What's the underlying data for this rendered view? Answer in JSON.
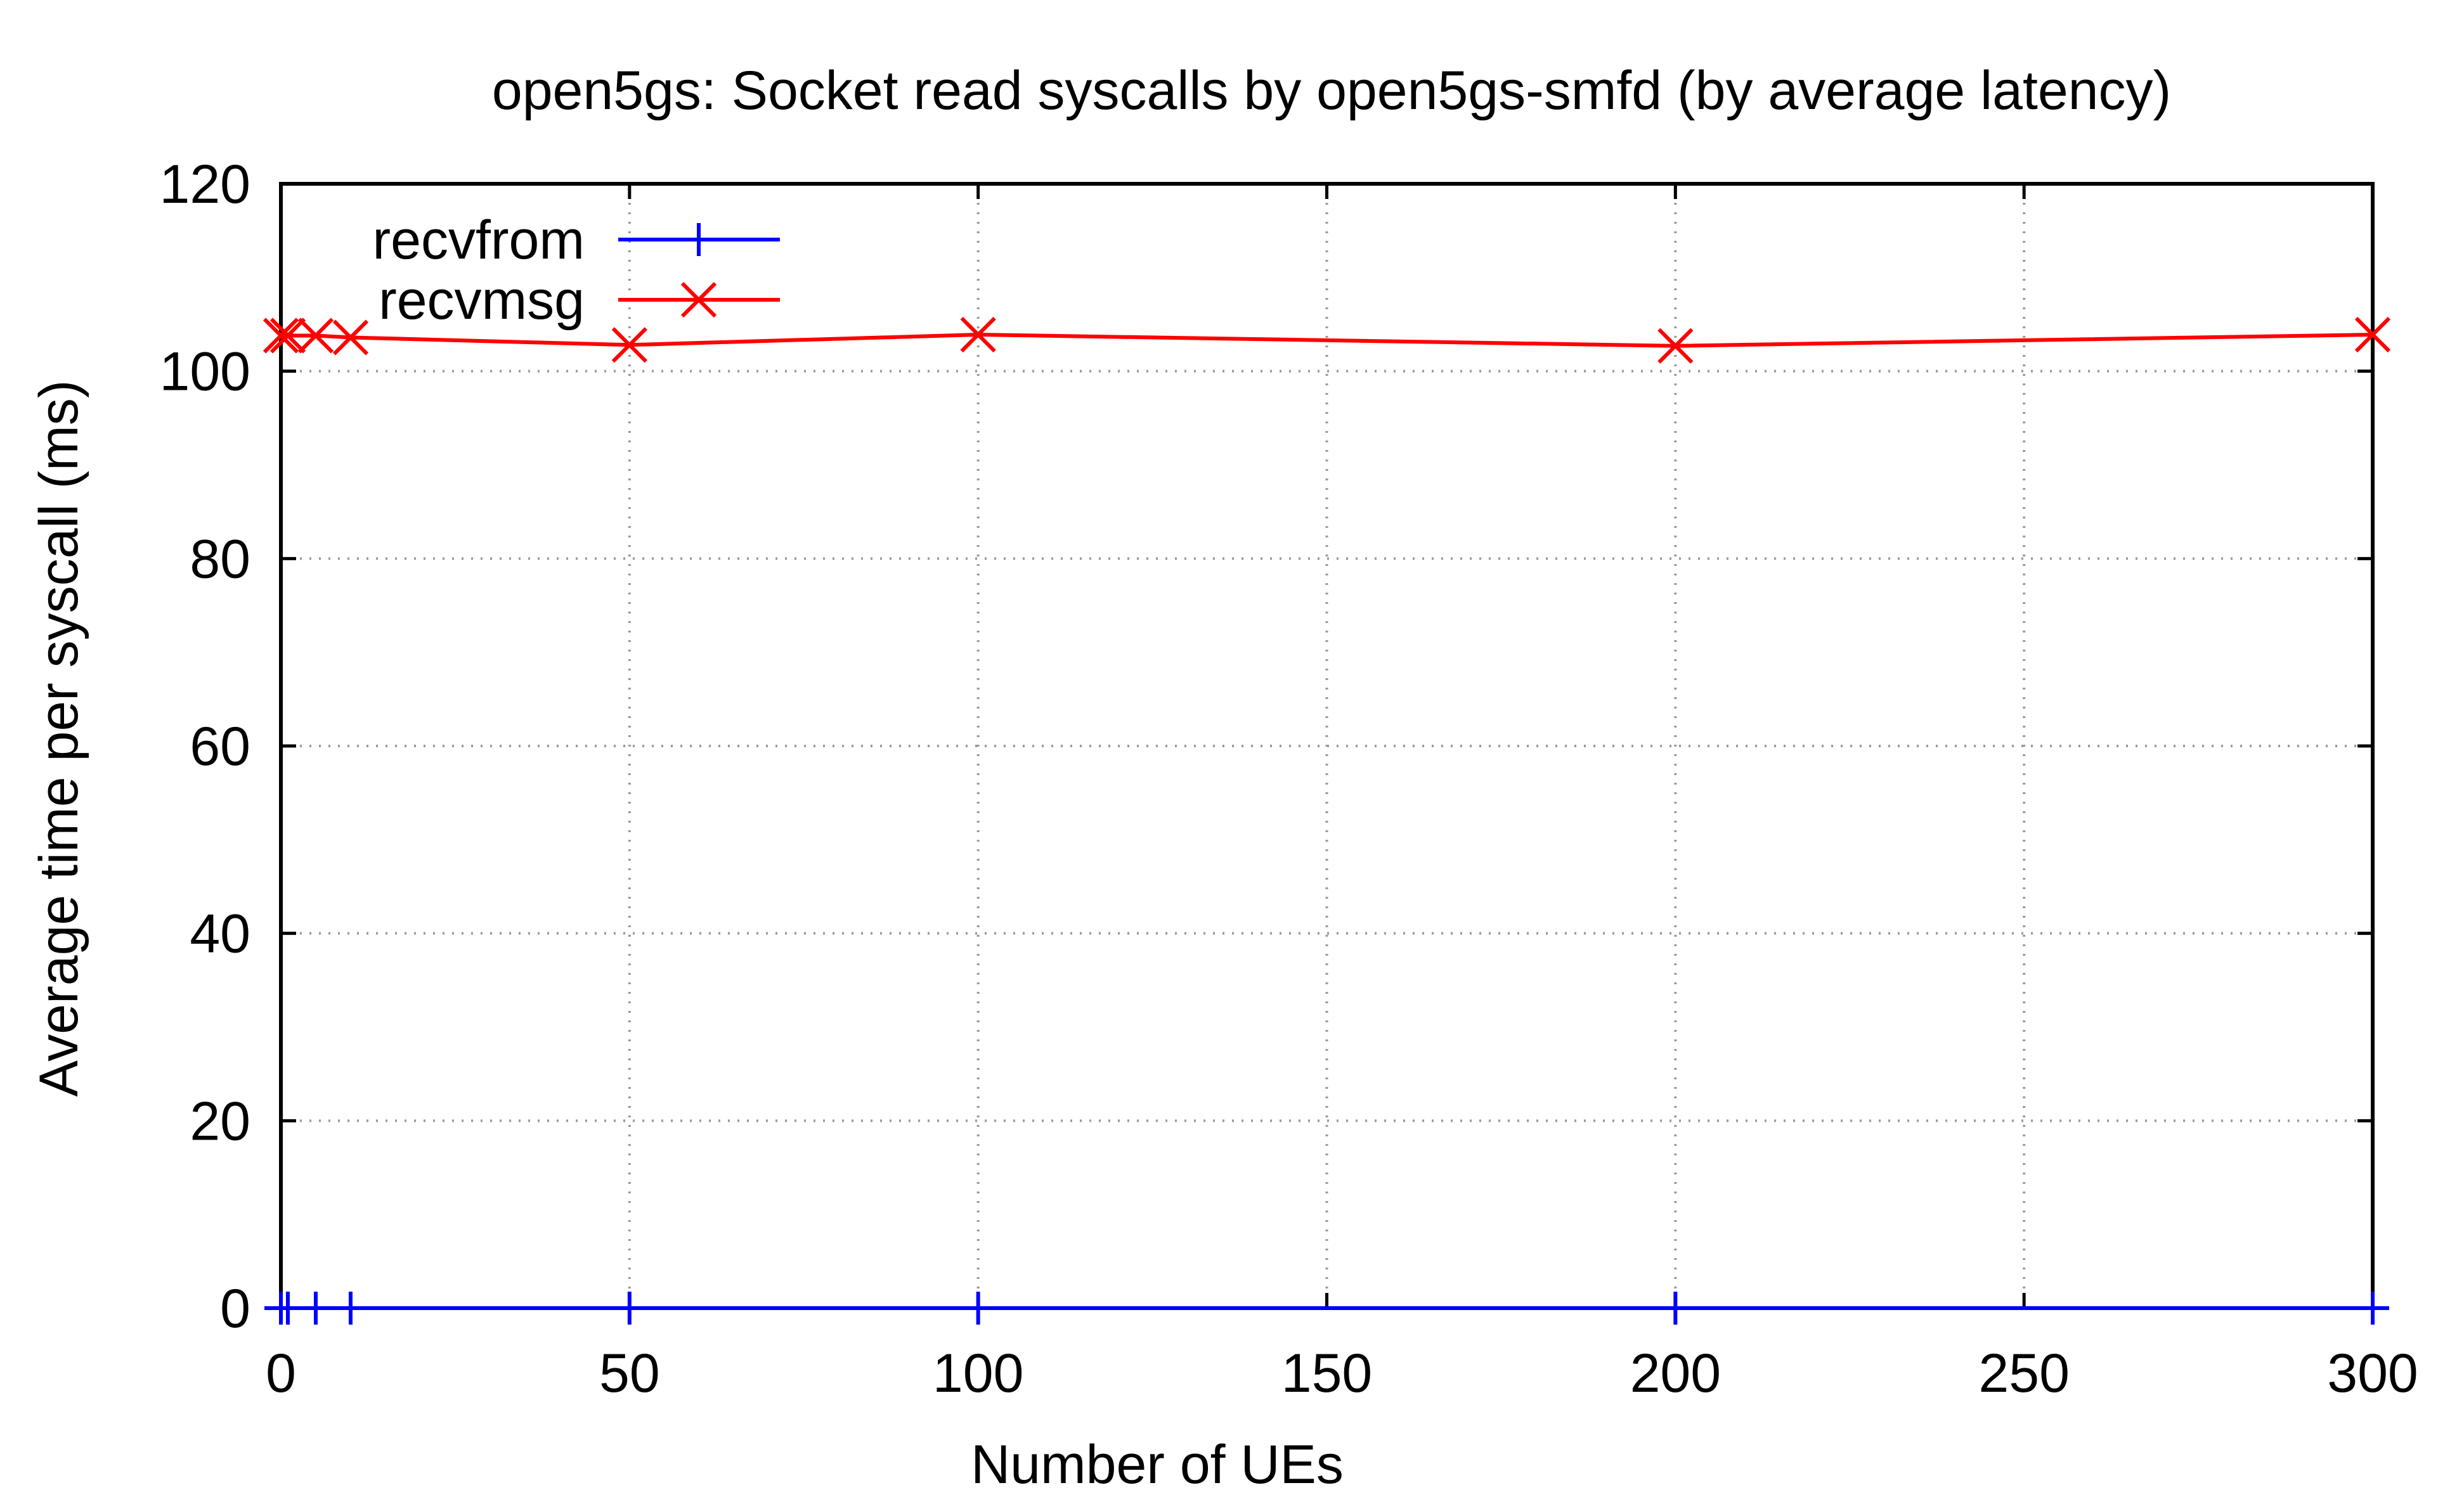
{
  "chart_data": {
    "type": "line",
    "title": "open5gs: Socket read syscalls by open5gs-smfd (by average latency)",
    "xlabel": "Number of UEs",
    "ylabel": "Average time per syscall (ms)",
    "xlim": [
      0,
      300
    ],
    "ylim": [
      0,
      120
    ],
    "xticks": [
      0,
      50,
      100,
      150,
      200,
      250,
      300
    ],
    "yticks": [
      0,
      20,
      40,
      60,
      80,
      100,
      120
    ],
    "grid": true,
    "legend_position": "top-left",
    "series": [
      {
        "name": "recvfrom",
        "color": "#0000ff",
        "marker": "plus",
        "x": [
          0,
          1,
          5,
          10,
          50,
          100,
          200,
          300
        ],
        "y": [
          0,
          0,
          0,
          0,
          0,
          0,
          0,
          0
        ]
      },
      {
        "name": "recvmsg",
        "color": "#ff0000",
        "marker": "cross",
        "x": [
          0,
          1,
          5,
          10,
          50,
          100,
          200,
          300
        ],
        "y": [
          103.8,
          103.8,
          103.8,
          103.6,
          102.8,
          103.9,
          102.7,
          103.9
        ]
      }
    ]
  }
}
